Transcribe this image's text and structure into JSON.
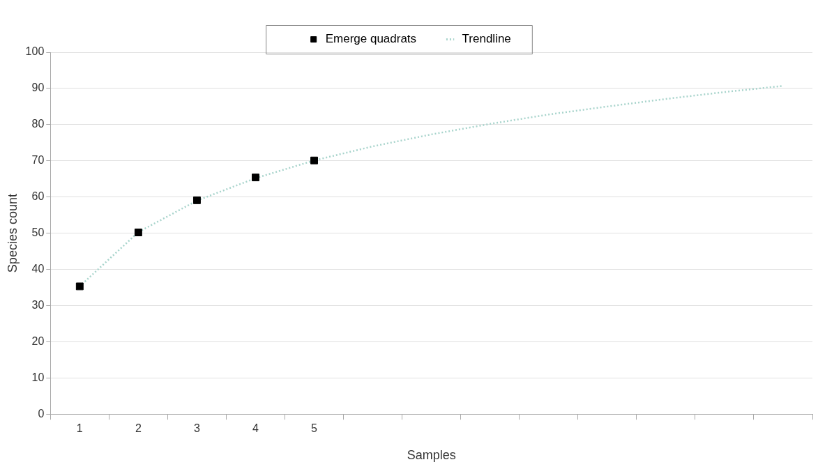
{
  "chart_data": {
    "type": "scatter",
    "xlabel": "Samples",
    "ylabel": "Species count",
    "categories": [
      "1",
      "2",
      "3",
      "4",
      "5",
      null,
      null,
      null,
      null,
      null,
      null,
      null,
      null
    ],
    "ylim": [
      0,
      100
    ],
    "yticks": [
      0,
      10,
      20,
      30,
      40,
      50,
      60,
      70,
      80,
      90,
      100
    ],
    "grid": "y",
    "legend": "top",
    "series": [
      {
        "name": "Emerge quadrats",
        "type": "scatter",
        "marker": "square",
        "color": "#000000",
        "values": [
          35.3,
          50.2,
          59.1,
          65.4,
          70.1,
          null,
          null,
          null,
          null,
          null,
          null,
          null,
          null
        ]
      },
      {
        "name": "Trendline",
        "type": "line",
        "marker": "none",
        "line_style": "dotted",
        "color": "#a8d4cc",
        "values": [
          35.3,
          50.3,
          59.0,
          65.2,
          70.1,
          74.0,
          77.3,
          80.2,
          82.8,
          85.0,
          87.1,
          89.0,
          90.7
        ]
      }
    ]
  }
}
